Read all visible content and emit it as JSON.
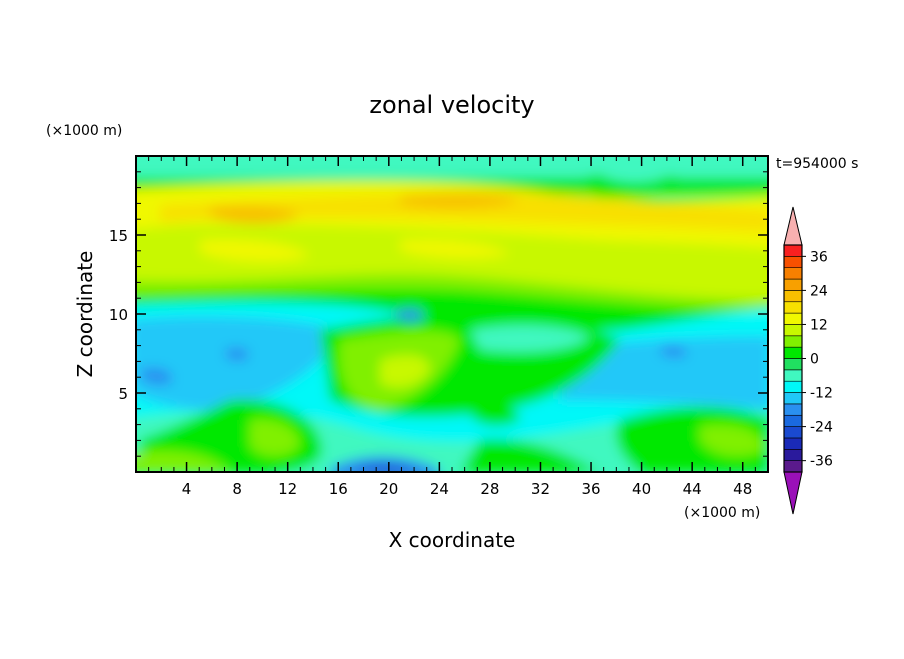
{
  "chart_data": {
    "type": "heatmap",
    "title": "zonal velocity",
    "xlabel": "X coordinate",
    "ylabel": "Z coordinate",
    "x_unit": "(×1000 m)",
    "y_unit": "(×1000 m)",
    "time_label": "t=954000 s",
    "xlim": [
      0,
      50
    ],
    "ylim": [
      0,
      20
    ],
    "x_ticks": [
      4,
      8,
      12,
      16,
      20,
      24,
      28,
      32,
      36,
      40,
      44,
      48
    ],
    "y_ticks": [
      5,
      10,
      15
    ],
    "colorbar": {
      "levels": [
        -40,
        -36,
        -32,
        -28,
        -24,
        -20,
        -16,
        -12,
        -8,
        -4,
        0,
        4,
        8,
        12,
        16,
        20,
        24,
        28,
        32,
        36,
        40
      ],
      "colors": [
        "#5a1a8c",
        "#2a1a9c",
        "#1a2ab8",
        "#1a4ad0",
        "#1a6ae0",
        "#2a90f0",
        "#20c8f8",
        "#00f8f8",
        "#40f8c0",
        "#20e060",
        "#00e800",
        "#80f000",
        "#c8f800",
        "#f0f800",
        "#f8e000",
        "#f8c000",
        "#f8a000",
        "#f88000",
        "#f85000",
        "#f82020"
      ],
      "under_color": "#9a10b8",
      "over_color": "#f8b0b0",
      "tick_labels": [
        "36",
        "24",
        "12",
        "0",
        "-12",
        "-24",
        "-36"
      ],
      "tick_values": [
        36,
        24,
        12,
        0,
        -12,
        -24,
        -36
      ]
    }
  }
}
